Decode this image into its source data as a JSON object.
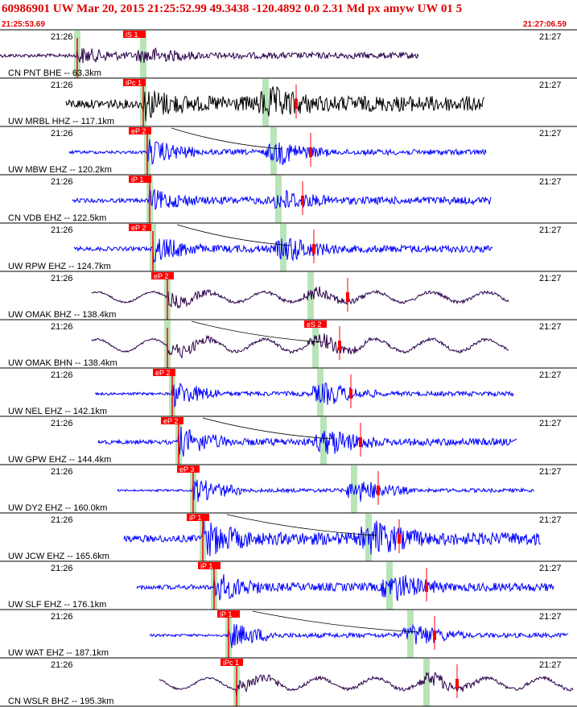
{
  "header": {
    "title": "60986901 UW Mar 20, 2015 21:25:52.99    49.3438 -120.4892  0.0 2.31 Md px amyw UW 01    5",
    "start_time": "21:25:53.69",
    "end_time": "21:27:06.59"
  },
  "colors": {
    "header_text": "#e00000",
    "pick": "#ff0000",
    "trace_blue": "#0000ff",
    "trace_purple": "#2a004a",
    "trace_black": "#000000",
    "arrival_band": "#b8e4b8",
    "separator": "#000000"
  },
  "chart_data": {
    "type": "line",
    "title": "60986901 UW Mar 20, 2015 21:25:52.99    49.3438 -120.4892  0.0 2.31 Md px amyw UW 01    5",
    "x_range": [
      "21:25:53.69",
      "21:27:06.59"
    ],
    "tick_labels": [
      "21:26",
      "21:27"
    ],
    "channels": [
      {
        "label": "CN PNT BHE -- 63.3km",
        "color": "purple",
        "pick": "iS 1",
        "noise": 0.22
      },
      {
        "label": "UW MRBL HHZ -- 117.1km",
        "color": "black",
        "pick": "iPc 1",
        "noise": 0.3
      },
      {
        "label": "UW MBW EHZ -- 120.2km",
        "color": "blue",
        "pick": "eP 2",
        "noise": 0.12
      },
      {
        "label": "CN VDB EHZ -- 122.5km",
        "color": "blue",
        "pick": "iP 1",
        "noise": 0.2
      },
      {
        "label": "UW RPW EHZ -- 124.7km",
        "color": "blue",
        "pick": "eP 2",
        "noise": 0.16
      },
      {
        "label": "UW OMAK BHZ -- 138.4km",
        "color": "purple",
        "pick": "eP 2",
        "noise": 0.12
      },
      {
        "label": "UW OMAK BHN -- 138.4km",
        "color": "purple",
        "pick": "eS 2",
        "noise": 0.1
      },
      {
        "label": "UW NEL EHZ -- 142.1km",
        "color": "blue",
        "pick": "eP 2",
        "noise": 0.1
      },
      {
        "label": "UW GPW EHZ -- 144.4km",
        "color": "blue",
        "pick": "eP 2",
        "noise": 0.14
      },
      {
        "label": "UW DY2 EHZ -- 160.0km",
        "color": "blue",
        "pick": "eP 3",
        "noise": 0.08
      },
      {
        "label": "UW JCW EHZ -- 165.6km",
        "color": "blue",
        "pick": "iP 1",
        "noise": 0.2
      },
      {
        "label": "UW SLF EHZ -- 176.1km",
        "color": "blue",
        "pick": "iP 1",
        "noise": 0.16
      },
      {
        "label": "UW WAT EHZ -- 187.1km",
        "color": "blue",
        "pick": "iP 1",
        "noise": 0.1
      },
      {
        "label": "CN WSLR BHZ -- 195.3km",
        "color": "purple",
        "pick": "iPc 1",
        "noise": 0.12
      }
    ]
  }
}
